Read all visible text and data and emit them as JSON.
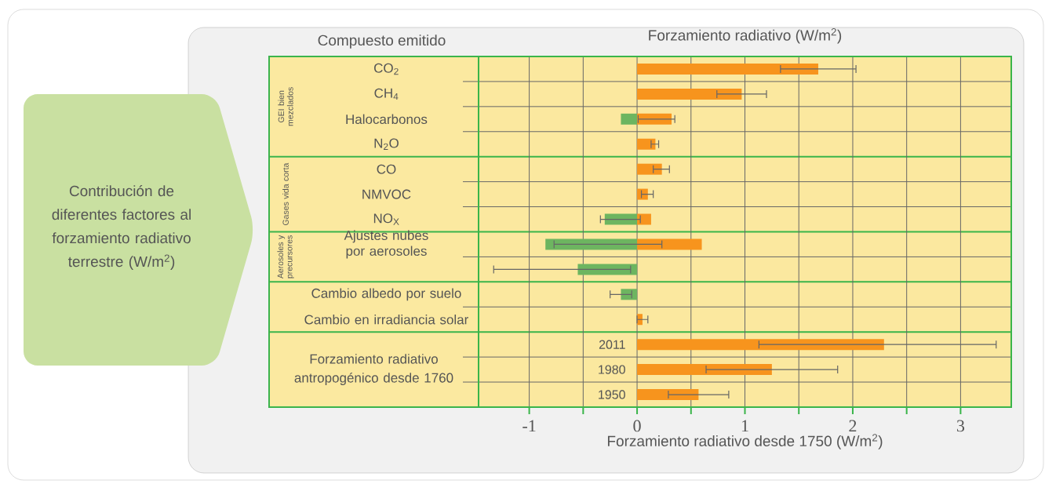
{
  "chart_data": {
    "type": "bar",
    "orientation": "horizontal",
    "stacked": true,
    "title": "Forzamiento radiativo (W/m$^{2}$)",
    "ylabel": "Compuesto emitido",
    "xlabel": "Forzamiento radiativo desde 1750 (W/m$^{2}$)",
    "categories": [
      "CO$_{2}$",
      "CH$_{4}$",
      "Halocarbonos",
      "N$_{2}$O",
      "CO",
      "NMVOC",
      "NO$_{X}$",
      "Ajustes nubes por aerosoles",
      null,
      "Cambio albedo por suelo",
      "Cambio en irradiancia solar",
      "2011",
      "1980",
      "1950"
    ],
    "series": [
      {
        "color": "#f7941d",
        "values": [
          1.68,
          0.97,
          0.32,
          0.17,
          0.23,
          0.1,
          0.13,
          0.6,
          null,
          null,
          0.05,
          2.29,
          1.25,
          0.57
        ],
        "errors": [
          [
            1.33,
            2.03
          ],
          [
            0.74,
            1.2
          ],
          [
            0.01,
            0.35
          ],
          [
            0.13,
            0.2
          ],
          [
            0.15,
            0.3
          ],
          [
            0.04,
            0.15
          ],
          [
            -0.34,
            0.03
          ],
          [
            -0.77,
            0.23
          ],
          null,
          null,
          [
            0,
            0.1
          ],
          [
            1.13,
            3.33
          ],
          [
            0.64,
            1.86
          ],
          [
            0.29,
            0.85
          ]
        ]
      },
      {
        "color": "#6db560",
        "values": [
          null,
          null,
          -0.15,
          null,
          null,
          null,
          -0.3,
          -0.85,
          -0.55,
          -0.15,
          null,
          null,
          null,
          null
        ],
        "errors": [
          null,
          null,
          null,
          null,
          null,
          null,
          null,
          null,
          [
            -1.33,
            -0.06
          ],
          [
            -0.25,
            -0.05
          ],
          null,
          null,
          null,
          null
        ]
      }
    ],
    "xlim": [
      -1.47,
      3.47
    ],
    "xticks": [
      -1,
      {
        "value": -0.5,
        "label": null
      },
      0,
      {
        "value": 0.5,
        "label": null
      },
      1,
      {
        "value": 1.5,
        "label": null
      },
      2,
      {
        "value": 2.5,
        "label": null
      },
      3
    ],
    "grid": true,
    "annotations": [
      "GEI bien mezclados",
      "Gases vida corta",
      "Aerosoles y precursores",
      "Forzamiento radiativo antropogénico desde 1760",
      "Contribución de diferentes factores al forzamiento radiativo terrestre (W/m$^{2}$)"
    ]
  }
}
